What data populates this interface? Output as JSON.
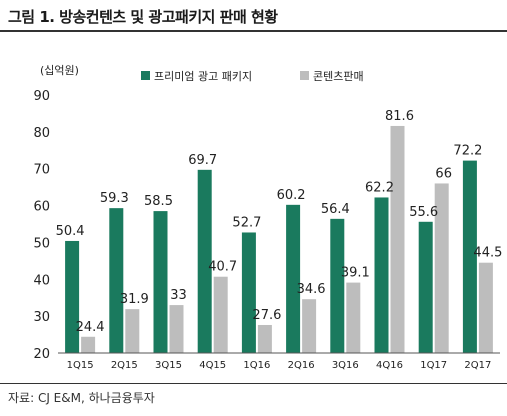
{
  "title": "그림 1. 방송컨텐츠 및 광고패키지 판매 현황",
  "source": "자료: CJ E&M, 하나금융투자",
  "colors": {
    "premium": "#1a7a5e",
    "content": "#bdbdbd"
  },
  "chart_data": {
    "type": "bar",
    "unit_label": "(십억원)",
    "categories": [
      "1Q15",
      "2Q15",
      "3Q15",
      "4Q15",
      "1Q16",
      "2Q16",
      "3Q16",
      "4Q16",
      "1Q17",
      "2Q17"
    ],
    "series": [
      {
        "name": "프리미엄 광고 패키지",
        "values": [
          50.4,
          59.3,
          58.5,
          69.7,
          52.7,
          60.2,
          56.4,
          62.2,
          55.6,
          72.2
        ],
        "labels": [
          "50.4",
          "59.3",
          "58.5",
          "69.7",
          "52.7",
          "60.2",
          "56.4",
          "62.2",
          "55.6",
          "72.2"
        ]
      },
      {
        "name": "콘텐츠판매",
        "values": [
          24.4,
          31.9,
          33,
          40.7,
          27.6,
          34.6,
          39.1,
          81.6,
          66,
          44.5
        ],
        "labels": [
          "24.4",
          "31.9",
          "33",
          "40.7",
          "27.6",
          "34.6",
          "39.1",
          "81.6",
          "66",
          "44.5"
        ]
      }
    ],
    "ylim": [
      20,
      90
    ],
    "yticks": [
      "20",
      "30",
      "40",
      "50",
      "60",
      "70",
      "80",
      "90"
    ],
    "legend_position": "top"
  }
}
